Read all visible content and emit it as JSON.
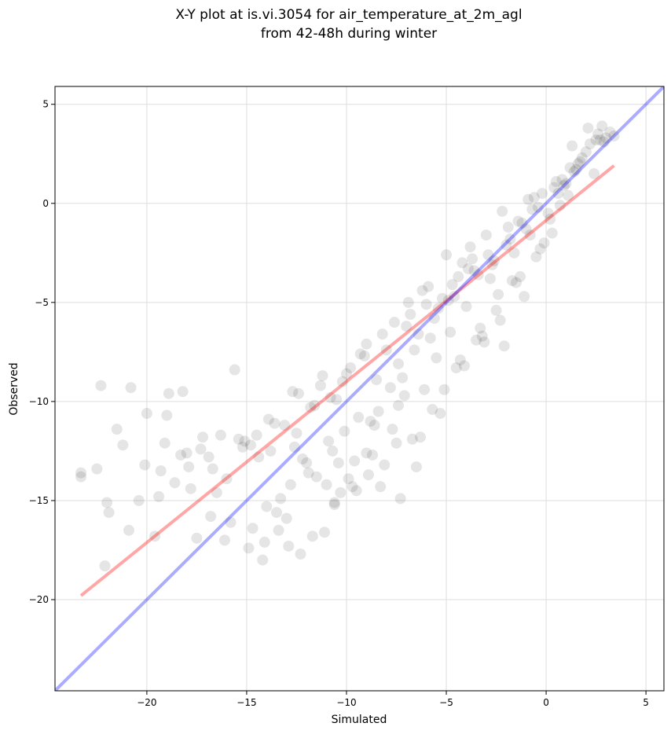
{
  "chart_data": {
    "type": "scatter",
    "title": "X-Y plot at is.vi.3054 for air_temperature_at_2m_agl\nfrom 42-48h during winter",
    "title_lines": [
      "X-Y plot at is.vi.3054 for air_temperature_at_2m_agl",
      "from 42-48h during winter"
    ],
    "xlabel": "Simulated",
    "ylabel": "Observed",
    "xlim": [
      -24.6,
      5.9
    ],
    "ylim": [
      -24.6,
      5.9
    ],
    "xticks": [
      -20,
      -15,
      -10,
      -5,
      0,
      5
    ],
    "yticks": [
      -20,
      -15,
      -10,
      -5,
      0,
      5
    ],
    "xtick_labels": [
      "−20",
      "−15",
      "−10",
      "−5",
      "0",
      "5"
    ],
    "ytick_labels": [
      "−20",
      "−15",
      "−10",
      "−5",
      "0",
      "5"
    ],
    "grid": true,
    "legend": "none",
    "point_color": "#000000",
    "point_alpha": 0.1,
    "series": [
      {
        "kind": "scatter",
        "x": [
          -23.3,
          -23.3,
          -22.3,
          -22.1,
          -22.0,
          -21.9,
          -21.5,
          -20.8,
          -20.4,
          -20.0,
          -19.6,
          -19.3,
          -19.0,
          -18.6,
          -18.2,
          -17.9,
          -17.5,
          -17.2,
          -16.8,
          -16.5,
          -16.1,
          -15.6,
          -15.2,
          -14.9,
          -14.5,
          -14.2,
          -13.8,
          -13.5,
          -13.1,
          -12.8,
          -12.4,
          -12.0,
          -11.6,
          -11.2,
          -10.9,
          -10.5,
          -10.1,
          -9.8,
          -9.4,
          -9.0,
          -8.6,
          -8.2,
          -7.8,
          -7.4,
          -7.0,
          -6.6,
          -6.2,
          -5.8,
          -5.4,
          -5.0,
          -4.6,
          -4.2,
          -3.8,
          -3.4,
          -3.0,
          -2.6,
          -2.2,
          -1.8,
          -1.4,
          -1.0,
          -0.6,
          -0.2,
          0.2,
          0.6,
          1.0,
          1.4,
          1.8,
          2.2,
          2.6,
          3.0,
          3.2,
          3.4,
          -22.5,
          -21.2,
          -20.1,
          -19.1,
          -18.3,
          -17.3,
          -16.3,
          -15.4,
          -14.4,
          -13.6,
          -12.7,
          -11.8,
          -10.8,
          -10.0,
          -9.3,
          -8.5,
          -7.6,
          -6.8,
          -6.0,
          -5.2,
          -4.4,
          -3.6,
          -2.8,
          -2.0,
          -1.2,
          -0.4,
          0.4,
          1.2,
          2.0,
          2.8,
          -20.9,
          -19.4,
          -18.0,
          -16.7,
          -15.1,
          -13.9,
          -12.5,
          -11.3,
          -10.2,
          -9.1,
          -8.0,
          -6.9,
          -5.9,
          -4.9,
          -3.9,
          -2.9,
          -1.9,
          -0.9,
          0.1,
          1.1,
          -17.8,
          -16.0,
          -14.7,
          -13.3,
          -11.9,
          -10.6,
          -9.6,
          -8.4,
          -7.2,
          -6.4,
          -5.6,
          -4.7,
          -3.7,
          -2.7,
          -1.6,
          -0.7,
          0.8,
          1.6,
          2.4,
          -15.8,
          -14.0,
          -12.2,
          -10.4,
          -8.8,
          -7.1,
          -5.5,
          -4.0,
          -2.4,
          -0.8,
          0.9,
          2.5,
          -13.0,
          -11.0,
          -9.0,
          -7.4,
          -6.1,
          -4.8,
          -3.3,
          -1.7,
          -0.1,
          1.5,
          -18.9,
          -16.9,
          -14.8,
          -12.6,
          -11.5,
          -10.7,
          -9.9,
          -8.7,
          -7.7,
          -6.7,
          -5.7,
          -4.5,
          -3.5,
          -2.5,
          -1.5,
          -0.5,
          0.5,
          1.3,
          2.1,
          2.9,
          -10.3,
          -9.7,
          -8.9,
          -8.1,
          -7.3,
          -6.5,
          -5.3,
          -4.3,
          -3.1,
          -2.1,
          -1.1,
          0.3,
          -14.1,
          -13.4,
          -12.9,
          -12.3,
          -11.7,
          -11.1,
          -10.6,
          -9.5,
          -8.3,
          -7.5,
          -6.3,
          -5.1,
          -4.1,
          -3.2,
          -2.3,
          -1.3,
          -0.3,
          0.7,
          1.7,
          2.7
        ],
        "y": [
          -13.6,
          -13.8,
          -9.2,
          -18.3,
          -15.1,
          -15.6,
          -11.4,
          -9.3,
          -15.0,
          -10.6,
          -16.8,
          -13.5,
          -10.7,
          -14.1,
          -9.5,
          -13.3,
          -16.9,
          -11.8,
          -15.8,
          -14.6,
          -17.0,
          -8.4,
          -12.3,
          -17.4,
          -11.7,
          -18.0,
          -12.5,
          -15.6,
          -11.2,
          -14.2,
          -9.6,
          -13.1,
          -10.2,
          -8.7,
          -12.0,
          -9.9,
          -11.5,
          -8.3,
          -10.8,
          -7.1,
          -11.2,
          -6.6,
          -9.3,
          -8.1,
          -6.2,
          -7.4,
          -4.4,
          -6.8,
          -5.3,
          -2.6,
          -4.7,
          -3.0,
          -2.2,
          -3.6,
          -1.6,
          -2.9,
          -0.4,
          -1.8,
          -0.9,
          -1.3,
          0.3,
          0.5,
          -0.8,
          0.5,
          1.0,
          1.6,
          2.3,
          3.0,
          3.5,
          3.3,
          3.6,
          3.4,
          -13.4,
          -12.2,
          -13.2,
          -12.1,
          -12.7,
          -12.4,
          -11.7,
          -11.9,
          -12.8,
          -11.1,
          -9.5,
          -10.3,
          -9.8,
          -8.6,
          -7.6,
          -8.9,
          -6.0,
          -5.6,
          -5.1,
          -4.8,
          -3.7,
          -3.4,
          -3.8,
          -2.1,
          -1.0,
          -0.2,
          0.8,
          1.8,
          2.6,
          3.9,
          -16.5,
          -14.8,
          -12.6,
          -13.4,
          -12.0,
          -10.9,
          -11.6,
          -9.2,
          -9.0,
          -7.7,
          -7.4,
          -5.0,
          -4.2,
          -4.9,
          -3.3,
          -2.6,
          -1.2,
          0.2,
          -0.5,
          0.4,
          -14.4,
          -13.9,
          -16.4,
          -14.9,
          -13.6,
          -15.1,
          -13.0,
          -10.5,
          -8.8,
          -6.6,
          -5.8,
          -4.1,
          -2.8,
          -3.1,
          -2.5,
          -0.3,
          1.2,
          2.0,
          1.5,
          -16.1,
          -15.3,
          -12.9,
          -13.1,
          -11.0,
          -9.7,
          -7.8,
          -5.2,
          -4.6,
          -1.6,
          0.9,
          3.2,
          -15.9,
          -14.2,
          -12.6,
          -10.2,
          -9.4,
          -6.5,
          -6.3,
          -3.9,
          -2.0,
          1.7,
          -9.6,
          -12.8,
          -12.2,
          -12.3,
          -13.8,
          -12.5,
          -13.9,
          -12.7,
          -11.4,
          -11.9,
          -10.4,
          -8.3,
          -6.9,
          -5.4,
          -4.0,
          -2.7,
          1.1,
          2.9,
          3.8,
          3.1,
          -14.6,
          -14.3,
          -13.7,
          -13.2,
          -14.9,
          -13.3,
          -10.6,
          -7.9,
          -7.0,
          -7.2,
          -4.7,
          -1.5,
          -17.1,
          -16.5,
          -17.3,
          -17.7,
          -16.8,
          -16.6,
          -15.2,
          -14.5,
          -14.3,
          -12.1,
          -11.8,
          -9.4,
          -8.2,
          -6.7,
          -5.9,
          -3.7,
          -2.3,
          -0.1,
          2.1,
          3.2
        ]
      },
      {
        "kind": "line",
        "name": "",
        "color": "#ff0000",
        "x": [
          -23.3,
          3.4
        ],
        "y": [
          -19.8,
          1.9
        ]
      },
      {
        "kind": "line",
        "name": "",
        "color": "#0000ff",
        "x": [
          -24.6,
          5.9
        ],
        "y": [
          -24.6,
          5.9
        ]
      }
    ]
  }
}
